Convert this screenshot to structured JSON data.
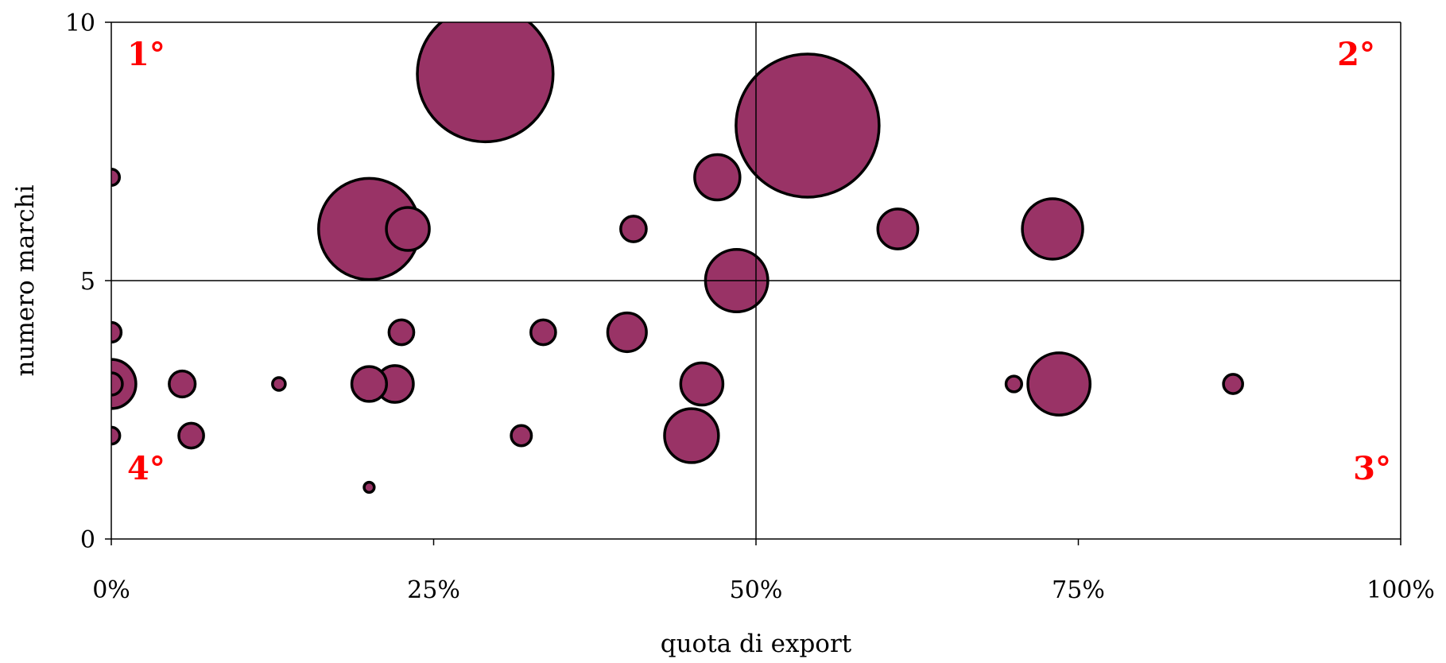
{
  "chart_data": {
    "type": "scatter",
    "subtype": "bubble",
    "xlabel": "quota di export",
    "ylabel": "numero marchi",
    "xlim": [
      0,
      1
    ],
    "ylim": [
      0,
      10
    ],
    "x_ticks": [
      {
        "value": 0,
        "label": "0%"
      },
      {
        "value": 0.25,
        "label": "25%"
      },
      {
        "value": 0.5,
        "label": "50%"
      },
      {
        "value": 0.75,
        "label": "75%"
      },
      {
        "value": 1,
        "label": "100%"
      }
    ],
    "y_ticks": [
      {
        "value": 0,
        "label": "0"
      },
      {
        "value": 5,
        "label": "5"
      },
      {
        "value": 10,
        "label": "10"
      }
    ],
    "reference_lines": {
      "x": 0.5,
      "y": 5
    },
    "quadrant_labels": [
      {
        "text": "1°",
        "corner": "top-left"
      },
      {
        "text": "2°",
        "corner": "top-right"
      },
      {
        "text": "3°",
        "corner": "bottom-right"
      },
      {
        "text": "4°",
        "corner": "bottom-left"
      }
    ],
    "colors": {
      "bubble_fill": "#993366",
      "bubble_stroke": "#000000",
      "quadrant_label": "#ff0000",
      "axis": "#000000"
    },
    "points": [
      {
        "x": 0.29,
        "y": 9,
        "size": 9000
      },
      {
        "x": 0.54,
        "y": 8,
        "size": 10000
      },
      {
        "x": 0.0,
        "y": 7,
        "size": 130
      },
      {
        "x": 0.47,
        "y": 7,
        "size": 1000
      },
      {
        "x": 0.23,
        "y": 6,
        "size": 900
      },
      {
        "x": 0.2,
        "y": 6,
        "size": 5000
      },
      {
        "x": 0.405,
        "y": 6,
        "size": 320
      },
      {
        "x": 0.61,
        "y": 6,
        "size": 780
      },
      {
        "x": 0.73,
        "y": 6,
        "size": 1780
      },
      {
        "x": 0.485,
        "y": 5,
        "size": 1900
      },
      {
        "x": 0.0,
        "y": 4,
        "size": 190
      },
      {
        "x": 0.225,
        "y": 4,
        "size": 300
      },
      {
        "x": 0.335,
        "y": 4,
        "size": 300
      },
      {
        "x": 0.4,
        "y": 4,
        "size": 730
      },
      {
        "x": 0.0,
        "y": 3,
        "size": 1180
      },
      {
        "x": 0.0,
        "y": 3,
        "size": 240
      },
      {
        "x": 0.055,
        "y": 3,
        "size": 330
      },
      {
        "x": 0.13,
        "y": 3,
        "size": 80
      },
      {
        "x": 0.22,
        "y": 3,
        "size": 660
      },
      {
        "x": 0.2,
        "y": 3,
        "size": 590
      },
      {
        "x": 0.458,
        "y": 3,
        "size": 870
      },
      {
        "x": 0.7,
        "y": 3,
        "size": 120
      },
      {
        "x": 0.735,
        "y": 3,
        "size": 1890
      },
      {
        "x": 0.87,
        "y": 3,
        "size": 180
      },
      {
        "x": 0.0,
        "y": 2,
        "size": 140
      },
      {
        "x": 0.062,
        "y": 2,
        "size": 300
      },
      {
        "x": 0.318,
        "y": 2,
        "size": 200
      },
      {
        "x": 0.45,
        "y": 2,
        "size": 1420
      },
      {
        "x": 0.2,
        "y": 1,
        "size": 50
      }
    ]
  }
}
